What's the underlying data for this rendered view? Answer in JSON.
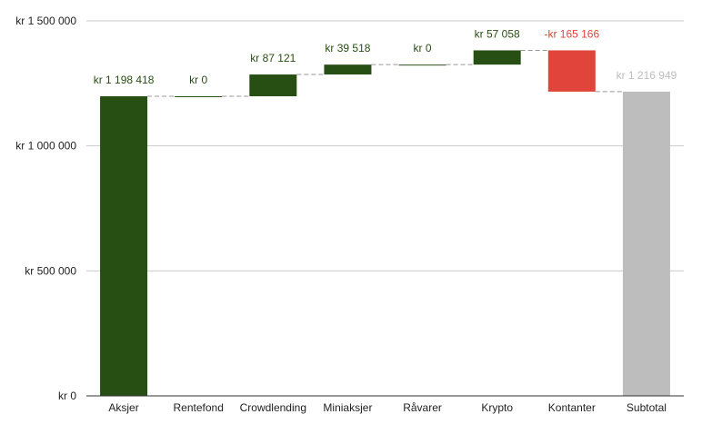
{
  "chart_data": {
    "type": "waterfall",
    "categories": [
      "Aksjer",
      "Rentefond",
      "Crowdlending",
      "Miniaksjer",
      "Råvarer",
      "Krypto",
      "Kontanter",
      "Subtotal"
    ],
    "values": [
      1198418,
      0,
      87121,
      39518,
      0,
      57058,
      -165166,
      1216949
    ],
    "data_labels": [
      "kr 1 198 418",
      "kr  0",
      "kr  87 121",
      "kr  39 518",
      "kr  0",
      "kr  57 058",
      "-kr  165 166",
      "kr 1 216 949"
    ],
    "total_index": 7,
    "y_ticks": [
      0,
      500000,
      1000000,
      1500000
    ],
    "y_tick_labels": [
      "kr    0",
      "kr  500 000",
      "kr 1 000 000",
      "kr 1 500 000"
    ],
    "ylim": [
      0,
      1500000
    ],
    "grid": true,
    "legend": "none",
    "colors": {
      "increase": "#274e13",
      "decrease": "#e0443a",
      "total": "#bdbdbd",
      "grid": "#cccccc",
      "axis": "#333333",
      "text": "#222222",
      "connector": "#999999"
    }
  }
}
